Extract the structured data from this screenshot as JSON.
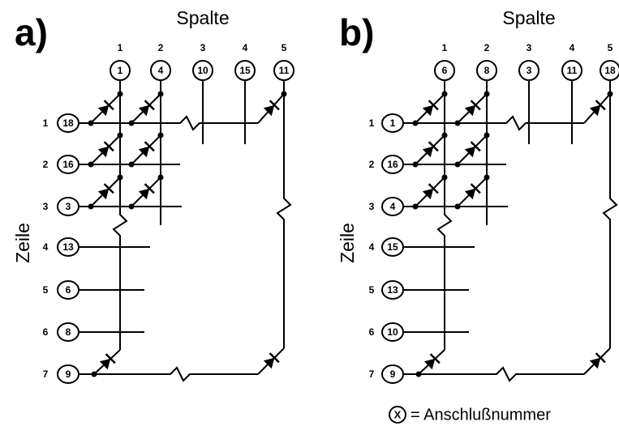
{
  "panels": [
    {
      "label": "a)",
      "column_title": "Spalte",
      "row_title": "Zeile",
      "columns": [
        {
          "number": 1,
          "pin": 1
        },
        {
          "number": 2,
          "pin": 4
        },
        {
          "number": 3,
          "pin": 10
        },
        {
          "number": 4,
          "pin": 15
        },
        {
          "number": 5,
          "pin": 11
        }
      ],
      "rows": [
        {
          "number": 1,
          "pin": 18
        },
        {
          "number": 2,
          "pin": 16
        },
        {
          "number": 3,
          "pin": 3
        },
        {
          "number": 4,
          "pin": 13
        },
        {
          "number": 5,
          "pin": 6
        },
        {
          "number": 6,
          "pin": 8
        },
        {
          "number": 7,
          "pin": 9
        }
      ]
    },
    {
      "label": "b)",
      "column_title": "Spalte",
      "row_title": "Zeile",
      "columns": [
        {
          "number": 1,
          "pin": 6
        },
        {
          "number": 2,
          "pin": 8
        },
        {
          "number": 3,
          "pin": 3
        },
        {
          "number": 4,
          "pin": 11
        },
        {
          "number": 5,
          "pin": 18
        }
      ],
      "rows": [
        {
          "number": 1,
          "pin": 1
        },
        {
          "number": 2,
          "pin": 16
        },
        {
          "number": 3,
          "pin": 4
        },
        {
          "number": 4,
          "pin": 15
        },
        {
          "number": 5,
          "pin": 13
        },
        {
          "number": 6,
          "pin": 10
        },
        {
          "number": 7,
          "pin": 9
        }
      ]
    }
  ],
  "legend": {
    "symbol": "X",
    "text": "= Anschlußnummer"
  }
}
